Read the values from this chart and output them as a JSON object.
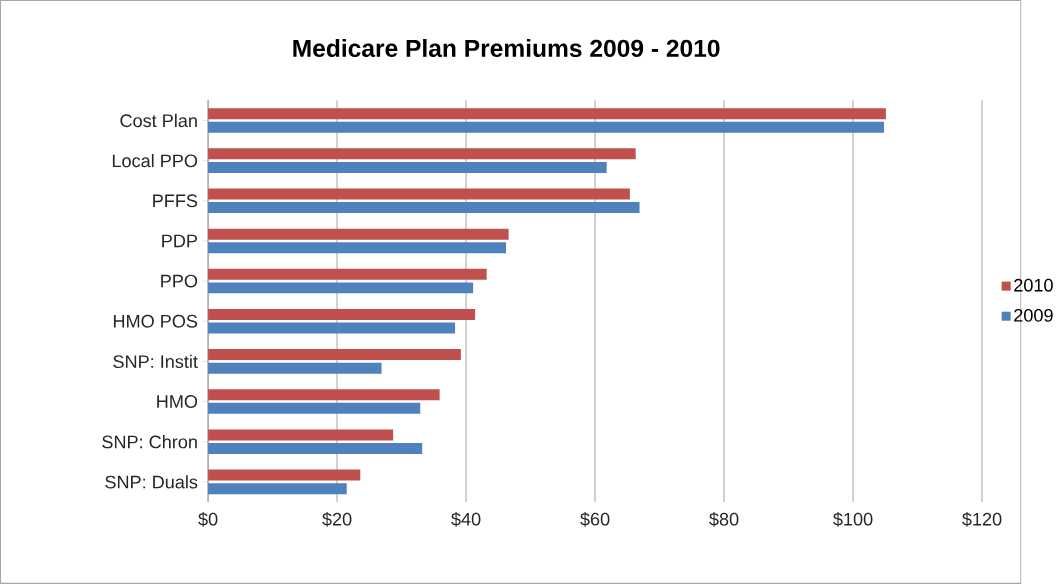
{
  "chart_data": {
    "type": "bar",
    "orientation": "horizontal",
    "title": "Medicare Plan Premiums  2009 - 2010",
    "categories": [
      "Cost Plan",
      "Local PPO",
      "PFFS",
      "PDP",
      "PPO",
      "HMO POS",
      "SNP: Instit",
      "HMO",
      "SNP: Chron",
      "SNP: Duals"
    ],
    "series": [
      {
        "name": "2010",
        "color": "#c0504d",
        "values": [
          105.1,
          66.3,
          65.4,
          46.6,
          43.2,
          41.4,
          39.2,
          35.9,
          28.7,
          23.6
        ]
      },
      {
        "name": "2009",
        "color": "#4f81bd",
        "values": [
          104.8,
          61.8,
          66.9,
          46.2,
          41.1,
          38.3,
          26.9,
          32.9,
          33.2,
          21.5
        ]
      }
    ],
    "xlim": [
      0,
      120
    ],
    "xticks": [
      {
        "value": 0,
        "label": "$0"
      },
      {
        "value": 20,
        "label": "$20"
      },
      {
        "value": 40,
        "label": "$40"
      },
      {
        "value": 60,
        "label": "$60"
      },
      {
        "value": 80,
        "label": "$80"
      },
      {
        "value": 100,
        "label": "$100"
      },
      {
        "value": 120,
        "label": "$120"
      }
    ],
    "grid": "x",
    "legend": "right"
  }
}
